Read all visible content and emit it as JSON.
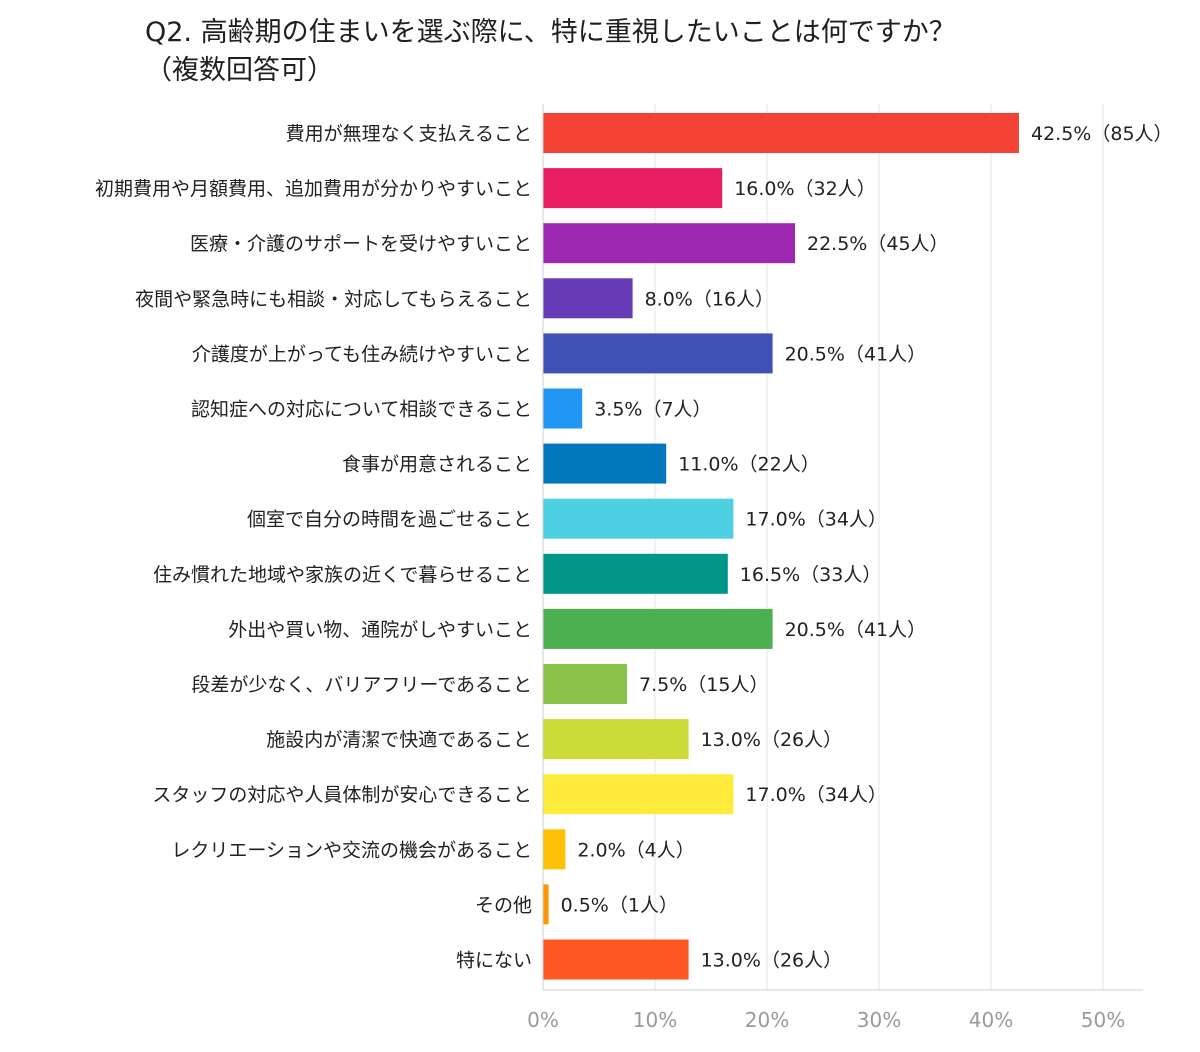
{
  "chart_data": {
    "type": "bar",
    "orientation": "horizontal",
    "title": "Q2. 高齢期の住まいを選ぶ際に、特に重視したいことは何ですか？\n（複数回答可）",
    "xlabel": "",
    "ylabel": "",
    "xlim": [
      0,
      50
    ],
    "grid": true,
    "x_ticks": [
      "0%",
      "10%",
      "20%",
      "30%",
      "40%",
      "50%"
    ],
    "categories": [
      "費用が無理なく支払えること",
      "初期費用や月額費用、追加費用が分かりやすいこと",
      "医療・介護のサポートを受けやすいこと",
      "夜間や緊急時にも相談・対応してもらえること",
      "介護度が上がっても住み続けやすいこと",
      "認知症への対応について相談できること",
      "食事が用意されること",
      "個室で自分の時間を過ごせること",
      "住み慣れた地域や家族の近くで暮らせること",
      "外出や買い物、通院がしやすいこと",
      "段差が少なく、バリアフリーであること",
      "施設内が清潔で快適であること",
      "スタッフの対応や人員体制が安心できること",
      "レクリエーションや交流の機会があること",
      "その他",
      "特にない"
    ],
    "values": [
      42.5,
      16.0,
      22.5,
      8.0,
      20.5,
      3.5,
      11.0,
      17.0,
      16.5,
      20.5,
      7.5,
      13.0,
      17.0,
      2.0,
      0.5,
      13.0
    ],
    "data_labels": [
      "42.5%（85人）",
      "16.0%（32人）",
      "22.5%（45人）",
      "8.0%（16人）",
      "20.5%（41人）",
      "3.5%（7人）",
      "11.0%（22人）",
      "17.0%（34人）",
      "16.5%（33人）",
      "20.5%（41人）",
      "7.5%（15人）",
      "13.0%（26人）",
      "17.0%（34人）",
      "2.0%（4人）",
      "0.5%（1人）",
      "13.0%（26人）"
    ],
    "colors": [
      "#f44336",
      "#e91e63",
      "#9c27b0",
      "#673ab7",
      "#3f51b5",
      "#2196f3",
      "#0277bd",
      "#4dd0e1",
      "#009688",
      "#4caf50",
      "#8bc34a",
      "#cddc39",
      "#ffeb3b",
      "#ffc107",
      "#ff9800",
      "#ff5722"
    ]
  }
}
